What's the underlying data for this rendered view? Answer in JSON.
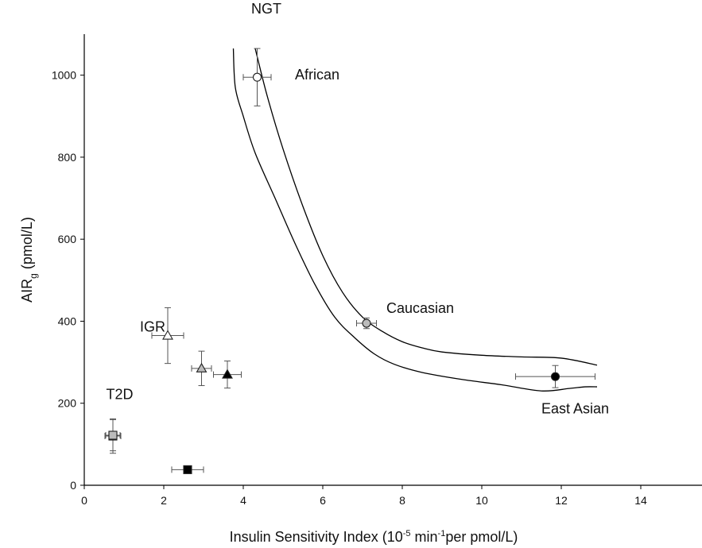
{
  "chart_data": {
    "type": "scatter",
    "title": "",
    "xlabel": {
      "main": "Insulin Sensitivity Index (10",
      "sup1": "-5",
      "mid": " min",
      "sup2": "-1",
      "end": "per pmol/L)"
    },
    "ylabel": {
      "main": "AIR",
      "sub": "g",
      "end": " (pmol/L)"
    },
    "xlim": [
      0,
      15
    ],
    "ylim": [
      0,
      1100
    ],
    "xticks": [
      0,
      2,
      4,
      6,
      8,
      10,
      12,
      14
    ],
    "yticks": [
      0,
      200,
      400,
      600,
      800,
      1000
    ],
    "grid": false,
    "legend": "none",
    "annotations": [
      {
        "text": "NGT",
        "x": 4.2,
        "y": 1150
      },
      {
        "text": "African",
        "x": 5.3,
        "y": 990
      },
      {
        "text": "Caucasian",
        "x": 7.6,
        "y": 420
      },
      {
        "text": "IGR",
        "x": 1.4,
        "y": 375
      },
      {
        "text": "East Asian",
        "x": 11.5,
        "y": 175
      },
      {
        "text": "T2D",
        "x": 0.55,
        "y": 210
      }
    ],
    "series": [
      {
        "marker": "circle",
        "fill": "#ffffff",
        "points": [
          {
            "x": 4.35,
            "y": 995,
            "xerr": 0.35,
            "yerr": 70
          }
        ]
      },
      {
        "marker": "circle",
        "fill": "#bbbbbb",
        "points": [
          {
            "x": 7.1,
            "y": 395,
            "xerr": 0.25,
            "yerr": 13
          }
        ]
      },
      {
        "marker": "circle",
        "fill": "#000000",
        "points": [
          {
            "x": 11.85,
            "y": 265,
            "xerr": 1.0,
            "yerr": 27
          }
        ]
      },
      {
        "marker": "triangle",
        "fill": "#ffffff",
        "points": [
          {
            "x": 2.1,
            "y": 365,
            "xerr": 0.4,
            "yerr": 68
          }
        ]
      },
      {
        "marker": "triangle",
        "fill": "#bbbbbb",
        "points": [
          {
            "x": 2.95,
            "y": 285,
            "xerr": 0.25,
            "yerr": 42
          }
        ]
      },
      {
        "marker": "triangle",
        "fill": "#000000",
        "points": [
          {
            "x": 3.6,
            "y": 270,
            "xerr": 0.35,
            "yerr": 33
          }
        ]
      },
      {
        "marker": "square",
        "fill": "#ffffff",
        "points": [
          {
            "x": 0.72,
            "y": 120,
            "xerr": 0.2,
            "yerr": 42
          }
        ]
      },
      {
        "marker": "square",
        "fill": "#bbbbbb",
        "points": [
          {
            "x": 0.72,
            "y": 122,
            "xerr": 0.18,
            "yerr": 38
          }
        ]
      },
      {
        "marker": "square",
        "fill": "#000000",
        "points": [
          {
            "x": 2.6,
            "y": 38,
            "xerr": 0.4,
            "yerr": 9
          }
        ]
      }
    ],
    "curves": [
      {
        "points": [
          [
            4.3,
            1065
          ],
          [
            4.6,
            950
          ],
          [
            5.0,
            820
          ],
          [
            5.5,
            680
          ],
          [
            6.0,
            560
          ],
          [
            6.5,
            470
          ],
          [
            7.0,
            410
          ],
          [
            7.5,
            375
          ],
          [
            8.0,
            350
          ],
          [
            8.5,
            335
          ],
          [
            9.0,
            325
          ],
          [
            10.0,
            317
          ],
          [
            11.0,
            313
          ],
          [
            12.0,
            310
          ],
          [
            12.9,
            293
          ]
        ]
      },
      {
        "points": [
          [
            3.75,
            1065
          ],
          [
            3.8,
            970
          ],
          [
            4.0,
            900
          ],
          [
            4.3,
            810
          ],
          [
            4.8,
            700
          ],
          [
            5.3,
            590
          ],
          [
            5.8,
            490
          ],
          [
            6.3,
            410
          ],
          [
            6.8,
            360
          ],
          [
            7.3,
            320
          ],
          [
            7.8,
            295
          ],
          [
            8.5,
            275
          ],
          [
            9.5,
            258
          ],
          [
            10.5,
            245
          ],
          [
            11.5,
            230
          ],
          [
            12.2,
            236
          ],
          [
            12.6,
            240
          ],
          [
            12.9,
            240
          ]
        ]
      }
    ]
  }
}
